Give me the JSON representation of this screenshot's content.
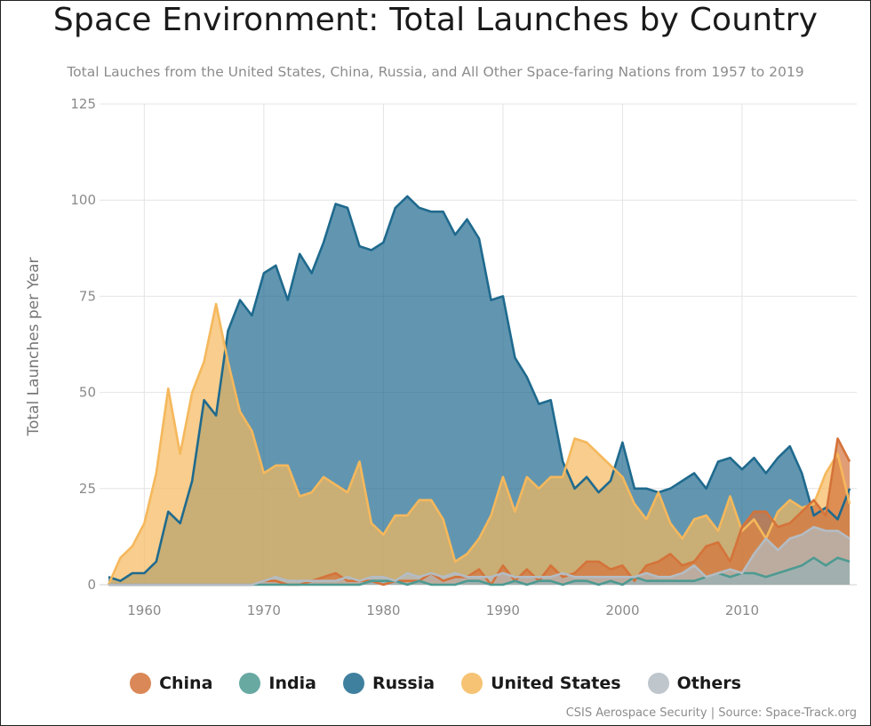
{
  "chart_data": {
    "type": "area",
    "title": "Space Environment: Total Launches by Country",
    "subtitle": "Total Lauches from the United States, China, Russia, and All Other Space-faring Nations from 1957 to 2019",
    "ylabel": "Total Launches per Year",
    "xlabel": "",
    "xlim": [
      1957,
      2019
    ],
    "ylim": [
      0,
      125
    ],
    "x_ticks": [
      1960,
      1970,
      1980,
      1990,
      2000,
      2010
    ],
    "y_ticks": [
      0,
      25,
      50,
      75,
      100,
      125
    ],
    "grid": true,
    "legend_position": "bottom",
    "x": [
      1957,
      1958,
      1959,
      1960,
      1961,
      1962,
      1963,
      1964,
      1965,
      1966,
      1967,
      1968,
      1969,
      1970,
      1971,
      1972,
      1973,
      1974,
      1975,
      1976,
      1977,
      1978,
      1979,
      1980,
      1981,
      1982,
      1983,
      1984,
      1985,
      1986,
      1987,
      1988,
      1989,
      1990,
      1991,
      1992,
      1993,
      1994,
      1995,
      1996,
      1997,
      1998,
      1999,
      2000,
      2001,
      2002,
      2003,
      2004,
      2005,
      2006,
      2007,
      2008,
      2009,
      2010,
      2011,
      2012,
      2013,
      2014,
      2015,
      2016,
      2017,
      2018,
      2019
    ],
    "series": [
      {
        "name": "Russia",
        "color": "#1f6a8e",
        "values": [
          2,
          1,
          3,
          3,
          6,
          19,
          16,
          27,
          48,
          44,
          66,
          74,
          70,
          81,
          83,
          74,
          86,
          81,
          89,
          99,
          98,
          88,
          87,
          89,
          98,
          101,
          98,
          97,
          97,
          91,
          95,
          90,
          74,
          75,
          59,
          54,
          47,
          48,
          32,
          25,
          28,
          24,
          27,
          37,
          25,
          25,
          24,
          25,
          27,
          29,
          25,
          32,
          33,
          30,
          33,
          29,
          33,
          36,
          29,
          18,
          20,
          17,
          25
        ]
      },
      {
        "name": "United States",
        "color": "#f5b85c",
        "values": [
          0,
          7,
          10,
          16,
          29,
          51,
          34,
          50,
          58,
          73,
          58,
          45,
          40,
          29,
          31,
          31,
          23,
          24,
          28,
          26,
          24,
          32,
          16,
          13,
          18,
          18,
          22,
          22,
          17,
          6,
          8,
          12,
          18,
          28,
          19,
          28,
          25,
          28,
          28,
          38,
          37,
          34,
          31,
          28,
          21,
          17,
          24,
          16,
          12,
          17,
          18,
          14,
          23,
          14,
          17,
          12,
          19,
          22,
          20,
          21,
          29,
          34,
          21
        ]
      },
      {
        "name": "China",
        "color": "#d4733a",
        "values": [
          0,
          0,
          0,
          0,
          0,
          0,
          0,
          0,
          0,
          0,
          0,
          0,
          0,
          1,
          1,
          0,
          0,
          1,
          2,
          3,
          1,
          1,
          1,
          0,
          1,
          1,
          1,
          3,
          1,
          2,
          2,
          4,
          0,
          5,
          1,
          4,
          1,
          5,
          2,
          3,
          6,
          6,
          4,
          5,
          1,
          5,
          6,
          8,
          5,
          6,
          10,
          11,
          6,
          15,
          19,
          19,
          15,
          16,
          19,
          22,
          18,
          38,
          32
        ]
      },
      {
        "name": "India",
        "color": "#4e9a92",
        "values": [
          0,
          0,
          0,
          0,
          0,
          0,
          0,
          0,
          0,
          0,
          0,
          0,
          0,
          0,
          0,
          0,
          0,
          0,
          0,
          0,
          0,
          0,
          1,
          1,
          1,
          0,
          1,
          0,
          0,
          0,
          1,
          1,
          0,
          0,
          1,
          0,
          1,
          1,
          0,
          1,
          1,
          0,
          1,
          0,
          2,
          1,
          1,
          1,
          1,
          1,
          2,
          3,
          2,
          3,
          3,
          2,
          3,
          4,
          5,
          7,
          5,
          7,
          6
        ]
      },
      {
        "name": "Others",
        "color": "#b4bcc3",
        "values": [
          0,
          0,
          0,
          0,
          0,
          0,
          0,
          0,
          0,
          0,
          0,
          0,
          0,
          1,
          2,
          1,
          1,
          1,
          1,
          1,
          2,
          1,
          2,
          2,
          1,
          3,
          2,
          3,
          2,
          3,
          2,
          2,
          2,
          3,
          2,
          2,
          2,
          2,
          3,
          2,
          2,
          2,
          2,
          2,
          2,
          3,
          2,
          2,
          3,
          5,
          2,
          3,
          4,
          3,
          8,
          12,
          9,
          12,
          13,
          15,
          14,
          14,
          12
        ]
      }
    ]
  },
  "footer": {
    "source": "CSIS Aerospace Security | Source: Space-Track.org"
  }
}
